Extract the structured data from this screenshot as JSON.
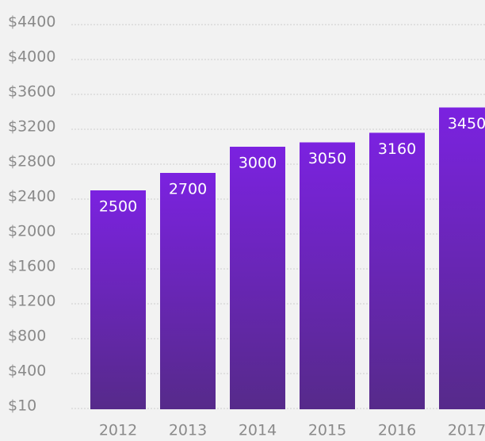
{
  "chart_data": {
    "type": "bar",
    "categories": [
      "2012",
      "2013",
      "2014",
      "2015",
      "2016",
      "2017"
    ],
    "values": [
      2500,
      2700,
      3000,
      3050,
      3160,
      3450
    ],
    "data_labels": [
      "2500",
      "2700",
      "3000",
      "3050",
      "3160",
      "3450"
    ],
    "y_ticks": [
      10,
      400,
      800,
      1200,
      1600,
      2000,
      2400,
      2800,
      3200,
      3600,
      4000,
      4400
    ],
    "y_tick_labels": [
      "$10",
      "$400",
      "$800",
      "$1200",
      "$1600",
      "$2000",
      "$2400",
      "$2800",
      "$3200",
      "$3600",
      "$4000",
      "$4400"
    ],
    "ylim": [
      10,
      4400
    ],
    "grid": true,
    "colors": {
      "bar_top": "#7b22e0",
      "bar_bottom": "#562a8a",
      "background": "#f2f2f2",
      "axis_text": "#8a8a8a",
      "data_label": "#ffffff"
    }
  }
}
